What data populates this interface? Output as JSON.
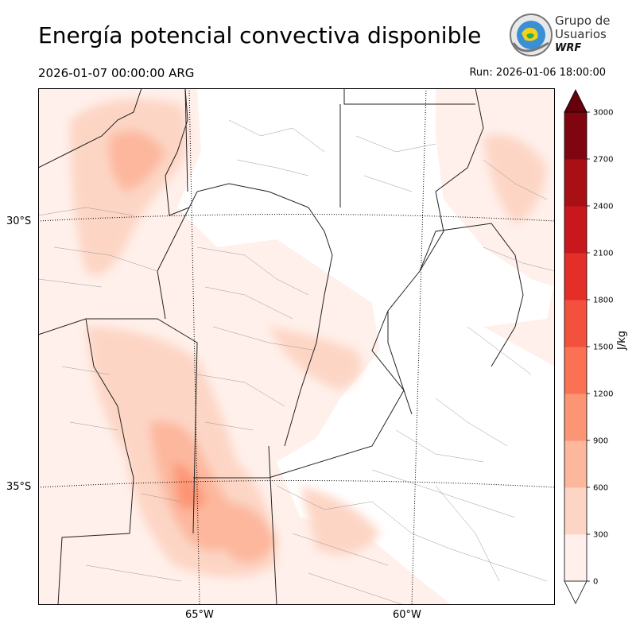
{
  "header": {
    "title": "Energía potencial convectiva disponible",
    "valid_time": "2026-01-07 00:00:00 ARG",
    "run_time": "Run: 2026-01-06 18:00:00"
  },
  "logo": {
    "line1": "Grupo de",
    "line2": "Usuarios",
    "line3": "WRF"
  },
  "map": {
    "lat_labels": [
      "30°S",
      "35°S"
    ],
    "lon_labels": [
      "65°W",
      "60°W"
    ]
  },
  "colorbar": {
    "unit": "J/kg",
    "ticks": [
      "0",
      "300",
      "600",
      "900",
      "1200",
      "1500",
      "1800",
      "2100",
      "2400",
      "2700",
      "3000"
    ],
    "colors": [
      "#fff0eb",
      "#fdd5c5",
      "#fcb79d",
      "#fc9574",
      "#fa7253",
      "#f3513e",
      "#e32f27",
      "#c8181d",
      "#a81016",
      "#7f0610"
    ],
    "over_color": "#67000d"
  }
}
